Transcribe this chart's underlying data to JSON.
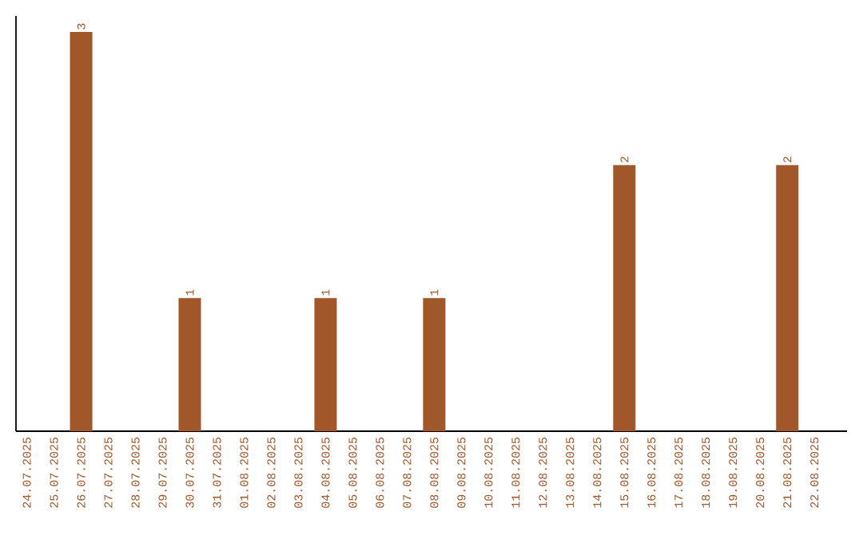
{
  "chart_data": {
    "type": "bar",
    "categories": [
      "24.07.2025",
      "25.07.2025",
      "26.07.2025",
      "27.07.2025",
      "28.07.2025",
      "29.07.2025",
      "30.07.2025",
      "31.07.2025",
      "01.08.2025",
      "02.08.2025",
      "03.08.2025",
      "04.08.2025",
      "05.08.2025",
      "06.08.2025",
      "07.08.2025",
      "08.08.2025",
      "09.08.2025",
      "10.08.2025",
      "11.08.2025",
      "12.08.2025",
      "13.08.2025",
      "14.08.2025",
      "15.08.2025",
      "16.08.2025",
      "17.08.2025",
      "18.08.2025",
      "19.08.2025",
      "20.08.2025",
      "21.08.2025",
      "22.08.2025"
    ],
    "values": [
      0,
      0,
      3,
      0,
      0,
      0,
      1,
      0,
      0,
      0,
      0,
      1,
      0,
      0,
      0,
      1,
      0,
      0,
      0,
      0,
      0,
      0,
      2,
      0,
      0,
      0,
      0,
      0,
      2,
      0
    ],
    "value_labels": [
      null,
      null,
      "3",
      null,
      null,
      null,
      "1",
      null,
      null,
      null,
      null,
      "1",
      null,
      null,
      null,
      "1",
      null,
      null,
      null,
      null,
      null,
      null,
      "2",
      null,
      null,
      null,
      null,
      null,
      "2",
      null
    ],
    "color": "#a0572a",
    "tick_labels": "x",
    "grid": false
  }
}
